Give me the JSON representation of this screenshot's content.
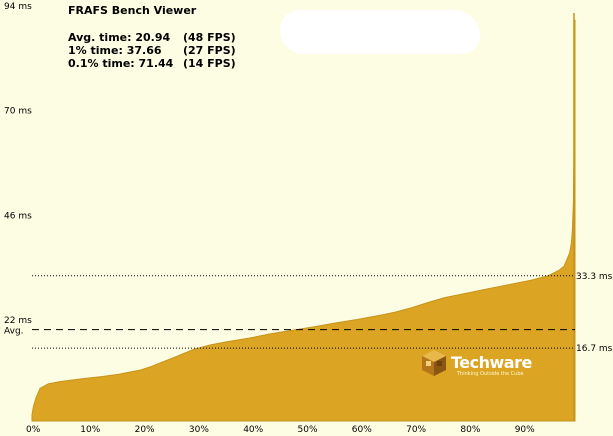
{
  "app": {
    "title": "FRAFS Bench Viewer"
  },
  "stats": [
    {
      "label": "Avg. time:",
      "value": "20.94",
      "fps": "(48 FPS)"
    },
    {
      "label": "1% time:",
      "value": "37.66",
      "fps": "(27 FPS)"
    },
    {
      "label": "0.1% time:",
      "value": "71.44",
      "fps": "(14 FPS)"
    }
  ],
  "logo": {
    "text": "Techware",
    "tagline": "Thinking Outside the Cube"
  },
  "colors": {
    "background": "#fdfde4",
    "area_fill": "#dba523",
    "area_edge": "#c8931b"
  },
  "chart_data": {
    "type": "area",
    "title": "FRAFS Bench Viewer",
    "xlabel": "",
    "ylabel": "",
    "xlim": [
      0,
      100
    ],
    "ylim": [
      0,
      94
    ],
    "grid": false,
    "x_ticks": [
      0,
      10,
      20,
      30,
      40,
      50,
      60,
      70,
      80,
      90
    ],
    "x_tick_labels": [
      "0%",
      "10%",
      "20%",
      "30%",
      "40%",
      "50%",
      "60%",
      "70%",
      "80%",
      "90%"
    ],
    "y_ticks": [
      94,
      70,
      46,
      22
    ],
    "y_tick_labels": [
      "94 ms",
      "70 ms",
      "46 ms",
      "22 ms"
    ],
    "reference_lines": [
      {
        "value": 33.3,
        "label": "33.3 ms",
        "style": "dotted"
      },
      {
        "value": 16.7,
        "label": "16.7 ms",
        "style": "dotted"
      },
      {
        "value": 20.94,
        "label": "Avg.",
        "style": "dashed"
      }
    ],
    "series": [
      {
        "x": [
          0,
          0.3,
          0.8,
          1.5,
          3,
          5,
          8,
          10,
          13,
          16,
          18,
          20,
          22,
          24,
          26,
          28,
          30,
          33,
          36,
          40,
          44,
          48,
          52,
          56,
          60,
          64,
          67,
          70,
          73,
          76,
          80,
          84,
          88,
          92,
          95,
          97,
          98,
          98.5,
          99,
          99.3,
          99.5,
          99.7,
          99.8,
          99.9,
          100
        ],
        "y": [
          1.5,
          3.5,
          5.5,
          7.5,
          8.5,
          9,
          9.5,
          9.8,
          10.2,
          10.7,
          11.2,
          11.7,
          12.5,
          13.5,
          14.5,
          15.5,
          16.5,
          17.5,
          18.2,
          19,
          20,
          20.8,
          21.6,
          22.5,
          23.3,
          24.2,
          25,
          26,
          27.2,
          28.3,
          29.3,
          30.3,
          31.3,
          32.3,
          33.3,
          34.5,
          35.5,
          37,
          38.5,
          40.5,
          43.5,
          50,
          60,
          75,
          92
        ]
      }
    ]
  }
}
